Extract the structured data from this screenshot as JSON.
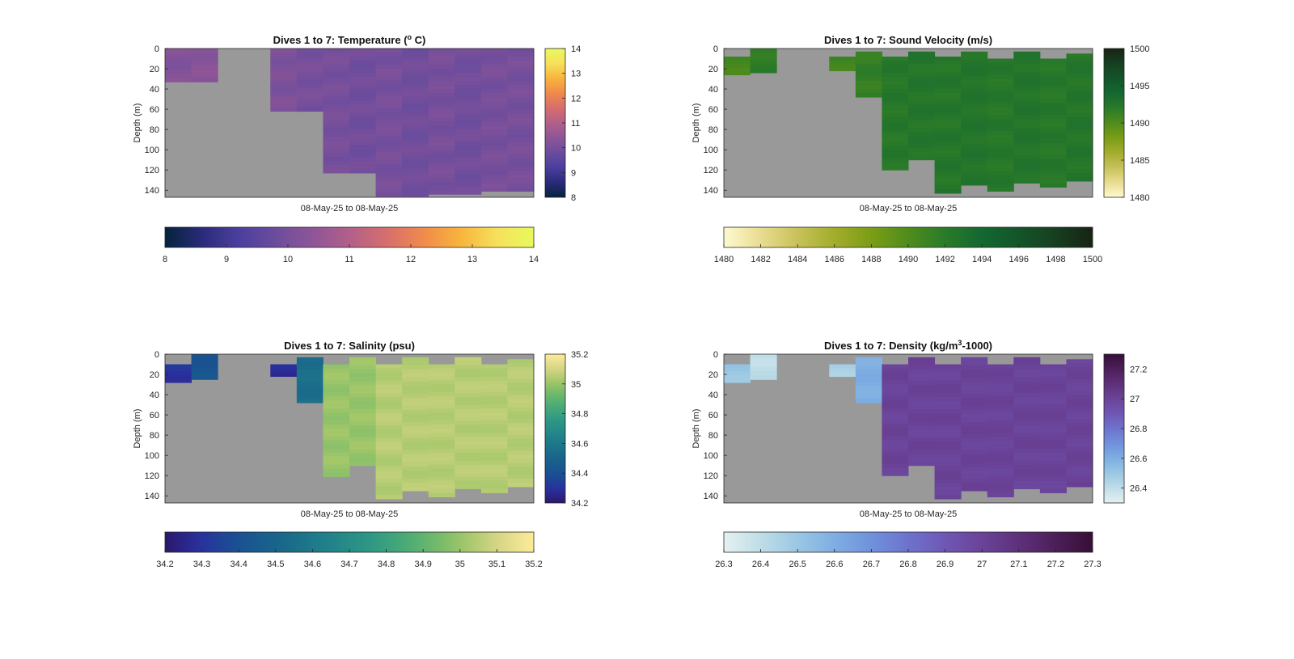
{
  "figure": {
    "background": "#ffffff",
    "nodata_color": "#999999"
  },
  "chart_data": [
    {
      "type": "heatmap",
      "title": "Dives 1 to 7: Temperature (",
      "title_sup": "o",
      "title_tail": " C)",
      "xlabel": "08-May-25 to 08-May-25",
      "ylabel": "Depth (m)",
      "ylim": [
        0,
        147
      ],
      "yticks": [
        "0",
        "20",
        "40",
        "60",
        "80",
        "100",
        "120",
        "140"
      ],
      "colormap": "thermal",
      "clim": [
        8,
        14
      ],
      "side_colorbar_ticks": [
        "14",
        "13",
        "12",
        "11",
        "10",
        "9",
        "8"
      ],
      "bottom_colorbar_ticks": [
        "8",
        "9",
        "10",
        "11",
        "12",
        "13",
        "14"
      ],
      "profiles": [
        {
          "top": 0,
          "bottom": 33,
          "value": 10.2
        },
        {
          "top": 0,
          "bottom": 33,
          "value": 10.3
        },
        null,
        null,
        {
          "top": 0,
          "bottom": 62,
          "value": 10.1
        },
        {
          "top": 0,
          "bottom": 62,
          "value": 10.0
        },
        {
          "top": 0,
          "bottom": 123,
          "value": 10.0
        },
        {
          "top": 0,
          "bottom": 123,
          "value": 9.9
        },
        {
          "top": 0,
          "bottom": 146,
          "value": 10.0
        },
        {
          "top": 0,
          "bottom": 146,
          "value": 9.9
        },
        {
          "top": 0,
          "bottom": 144,
          "value": 10.0
        },
        {
          "top": 0,
          "bottom": 144,
          "value": 9.9
        },
        {
          "top": 0,
          "bottom": 141,
          "value": 10.0
        },
        {
          "top": 0,
          "bottom": 141,
          "value": 10.0
        }
      ]
    },
    {
      "type": "heatmap",
      "title": "Dives 1 to 7: Sound Velocity (m/s)",
      "xlabel": "08-May-25 to 08-May-25",
      "ylabel": "Depth (m)",
      "ylim": [
        0,
        147
      ],
      "yticks": [
        "0",
        "20",
        "40",
        "60",
        "80",
        "100",
        "120",
        "140"
      ],
      "colormap": "speed",
      "clim": [
        1480,
        1500
      ],
      "side_colorbar_ticks": [
        "1500",
        "1495",
        "1490",
        "1485",
        "1480"
      ],
      "bottom_colorbar_ticks": [
        "1480",
        "1482",
        "1484",
        "1486",
        "1488",
        "1490",
        "1492",
        "1494",
        "1496",
        "1498",
        "1500"
      ],
      "profiles": [
        {
          "top": 8,
          "bottom": 26,
          "value": 1490.5
        },
        {
          "top": 0,
          "bottom": 24,
          "value": 1491.8
        },
        null,
        null,
        {
          "top": 8,
          "bottom": 22,
          "value": 1490.8
        },
        {
          "top": 3,
          "bottom": 48,
          "value": 1491.5
        },
        {
          "top": 8,
          "bottom": 120,
          "value": 1492.3
        },
        {
          "top": 3,
          "bottom": 110,
          "value": 1492.5
        },
        {
          "top": 8,
          "bottom": 143,
          "value": 1492.4
        },
        {
          "top": 3,
          "bottom": 135,
          "value": 1492.6
        },
        {
          "top": 10,
          "bottom": 141,
          "value": 1492.3
        },
        {
          "top": 3,
          "bottom": 133,
          "value": 1492.6
        },
        {
          "top": 10,
          "bottom": 137,
          "value": 1492.3
        },
        {
          "top": 5,
          "bottom": 131,
          "value": 1492.5
        }
      ]
    },
    {
      "type": "heatmap",
      "title": "Dives 1 to 7: Salinity (psu)",
      "xlabel": "08-May-25 to 08-May-25",
      "ylabel": "Depth (m)",
      "ylim": [
        0,
        147
      ],
      "yticks": [
        "0",
        "20",
        "40",
        "60",
        "80",
        "100",
        "120",
        "140"
      ],
      "colormap": "haline",
      "clim": [
        34.2,
        35.2
      ],
      "side_colorbar_ticks": [
        "35.2",
        "35",
        "34.8",
        "34.6",
        "34.4",
        "34.2"
      ],
      "bottom_colorbar_ticks": [
        "34.2",
        "34.3",
        "34.4",
        "34.5",
        "34.6",
        "34.7",
        "34.8",
        "34.9",
        "35",
        "35.1",
        "35.2"
      ],
      "profiles": [
        {
          "top": 10,
          "bottom": 28,
          "value": 34.3
        },
        {
          "top": 0,
          "bottom": 25,
          "value": 34.42
        },
        null,
        null,
        {
          "top": 10,
          "bottom": 22,
          "value": 34.28
        },
        {
          "top": 3,
          "bottom": 48,
          "value": 34.55
        },
        {
          "top": 10,
          "bottom": 121,
          "value": 35.0
        },
        {
          "top": 3,
          "bottom": 110,
          "value": 35.0
        },
        {
          "top": 10,
          "bottom": 143,
          "value": 35.05
        },
        {
          "top": 3,
          "bottom": 135,
          "value": 35.05
        },
        {
          "top": 10,
          "bottom": 141,
          "value": 35.05
        },
        {
          "top": 3,
          "bottom": 133,
          "value": 35.05
        },
        {
          "top": 10,
          "bottom": 137,
          "value": 35.05
        },
        {
          "top": 5,
          "bottom": 131,
          "value": 35.05
        }
      ]
    },
    {
      "type": "heatmap",
      "title": "Dives 1 to 7: Density (kg/m",
      "title_sup": "3",
      "title_tail": "-1000)",
      "xlabel": "08-May-25 to 08-May-25",
      "ylabel": "Depth (m)",
      "ylim": [
        0,
        147
      ],
      "yticks": [
        "0",
        "20",
        "40",
        "60",
        "80",
        "100",
        "120",
        "140"
      ],
      "colormap": "dense",
      "clim": [
        26.3,
        27.3
      ],
      "side_colorbar_ticks": [
        "27.2",
        "27",
        "26.8",
        "26.6",
        "26.4"
      ],
      "side_colorbar_tick_values": [
        27.2,
        27.0,
        26.8,
        26.6,
        26.4
      ],
      "bottom_colorbar_ticks": [
        "26.3",
        "26.4",
        "26.5",
        "26.6",
        "26.7",
        "26.8",
        "26.9",
        "27",
        "27.1",
        "27.2",
        "27.3"
      ],
      "profiles": [
        {
          "top": 10,
          "bottom": 28,
          "value": 26.5
        },
        {
          "top": 0,
          "bottom": 25,
          "value": 26.4
        },
        null,
        null,
        {
          "top": 10,
          "bottom": 22,
          "value": 26.45
        },
        {
          "top": 3,
          "bottom": 48,
          "value": 26.6
        },
        {
          "top": 10,
          "bottom": 120,
          "value": 27.0
        },
        {
          "top": 3,
          "bottom": 110,
          "value": 27.0
        },
        {
          "top": 10,
          "bottom": 143,
          "value": 27.0
        },
        {
          "top": 3,
          "bottom": 135,
          "value": 27.0
        },
        {
          "top": 10,
          "bottom": 141,
          "value": 27.0
        },
        {
          "top": 3,
          "bottom": 133,
          "value": 27.0
        },
        {
          "top": 10,
          "bottom": 137,
          "value": 27.0
        },
        {
          "top": 5,
          "bottom": 131,
          "value": 27.0
        }
      ]
    }
  ]
}
